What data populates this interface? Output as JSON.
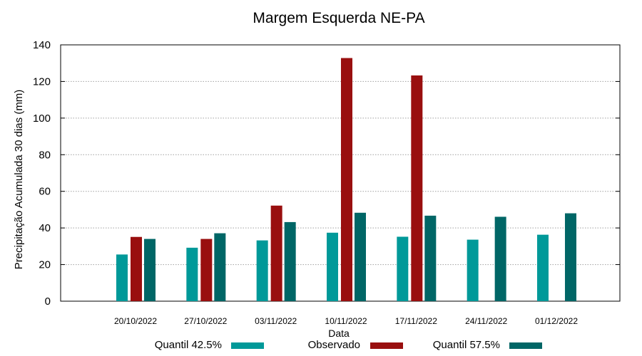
{
  "chart_data": {
    "type": "bar",
    "title": "Margem Esquerda NE-PA",
    "xlabel": "Data",
    "ylabel": "Precipitação Acumulada 30 dias (mm)",
    "ylim": [
      0,
      140
    ],
    "yticks": [
      0,
      20,
      40,
      60,
      80,
      100,
      120,
      140
    ],
    "grid": true,
    "legend_position": "bottom",
    "categories": [
      "20/10/2022",
      "27/10/2022",
      "03/11/2022",
      "10/11/2022",
      "17/11/2022",
      "24/11/2022",
      "01/12/2022"
    ],
    "series": [
      {
        "name": "Quantil 42.5%",
        "color": "#009999",
        "values": [
          25.5,
          29.2,
          33.2,
          37.4,
          35.2,
          33.6,
          36.3
        ]
      },
      {
        "name": "Observado",
        "color": "#990f0f",
        "values": [
          35.1,
          34.0,
          52.2,
          132.8,
          123.3,
          null,
          null
        ]
      },
      {
        "name": "Quantil 57.5%",
        "color": "#006666",
        "values": [
          34.0,
          37.1,
          43.2,
          48.3,
          46.7,
          46.1,
          48.0
        ]
      }
    ]
  }
}
